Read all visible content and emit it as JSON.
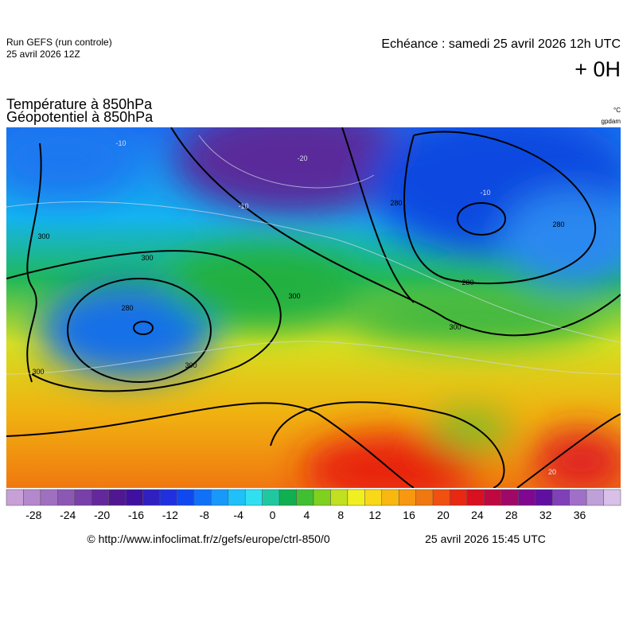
{
  "header": {
    "run": "Run GEFS (run controle)",
    "run_date": "25 avril 2026 12Z",
    "echeance": "Echéance : samedi 25 avril 2026 12h UTC",
    "offset": "+ 0H"
  },
  "titles": {
    "line1": "Température à 850hPa",
    "line2": "Géopotentiel à 850hPa",
    "unit1": "°C",
    "unit2": "gpdam"
  },
  "map": {
    "contour_labels": [
      "300",
      "280",
      "300",
      "300",
      "300",
      "300",
      "280",
      "280",
      "300",
      "280",
      "-10",
      "-10",
      "-20",
      "-10",
      "20"
    ]
  },
  "colorbar": {
    "ticks": [
      "-28",
      "-24",
      "-20",
      "-16",
      "-12",
      "-8",
      "-4",
      "0",
      "4",
      "8",
      "12",
      "16",
      "20",
      "24",
      "28",
      "32",
      "36"
    ]
  },
  "footer": {
    "url": "© http://www.infoclimat.fr/z/gefs/europe/ctrl-850/0",
    "timestamp": "25 avril 2026 15:45 UTC"
  }
}
